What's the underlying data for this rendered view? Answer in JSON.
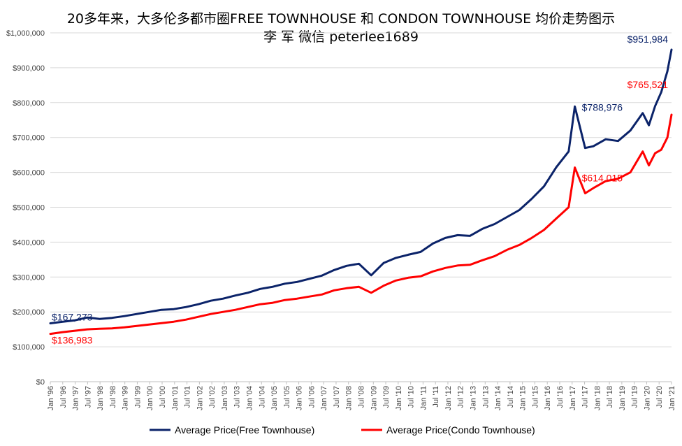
{
  "chart_data": {
    "type": "line",
    "title": "20多年来，大多伦多都市圈FREE TOWNHOUSE 和 CONDON TOWNHOUSE 均价走势图示",
    "subtitle": "李 军   微信 peterlee1689",
    "xlabel": "",
    "ylabel": "",
    "ylim": [
      0,
      1000000
    ],
    "y_ticks": [
      "$0",
      "$100,000",
      "$200,000",
      "$300,000",
      "$400,000",
      "$500,000",
      "$600,000",
      "$700,000",
      "$800,000",
      "$900,000",
      "$1,000,000"
    ],
    "x_ticks": [
      "Jan '96",
      "Jul '96",
      "Jan '97",
      "Jul '97",
      "Jan '98",
      "Jul '98",
      "Jan '99",
      "Jul '99",
      "Jan '00",
      "Jul '00",
      "Jan '01",
      "Jul '01",
      "Jan '02",
      "Jul '02",
      "Jan '03",
      "Jul '03",
      "Jan '04",
      "Jul '04",
      "Jan '05",
      "Jul '05",
      "Jan '06",
      "Jul '06",
      "Jan '07",
      "Jul '07",
      "Jan '08",
      "Jul '08",
      "Jan '09",
      "Jul '09",
      "Jan '10",
      "Jul '10",
      "Jan '11",
      "Jul '11",
      "Jan '12",
      "Jul '12",
      "Jan '13",
      "Jul '13",
      "Jan '14",
      "Jul '14",
      "Jan '15",
      "Jul '15",
      "Jan '16",
      "Jul '16",
      "Jan '17",
      "Jul '17",
      "Jan '18",
      "Jul '18",
      "Jan '19",
      "Jul '19",
      "Jan '20",
      "Jul '20",
      "Jan '21"
    ],
    "x_start": "1996-01",
    "x_end": "2021-03",
    "grid": true,
    "legend_position": "bottom",
    "series": [
      {
        "name": "Average Price(Free Townhouse)",
        "color": "#0b2369",
        "points": [
          [
            "1996-01",
            167273
          ],
          [
            "1996-07",
            172000
          ],
          [
            "1997-01",
            176000
          ],
          [
            "1997-07",
            184000
          ],
          [
            "1998-01",
            180000
          ],
          [
            "1998-07",
            183000
          ],
          [
            "1999-01",
            188000
          ],
          [
            "1999-07",
            194000
          ],
          [
            "2000-01",
            200000
          ],
          [
            "2000-07",
            206000
          ],
          [
            "2001-01",
            208000
          ],
          [
            "2001-07",
            214000
          ],
          [
            "2002-01",
            222000
          ],
          [
            "2002-07",
            232000
          ],
          [
            "2003-01",
            238000
          ],
          [
            "2003-07",
            247000
          ],
          [
            "2004-01",
            255000
          ],
          [
            "2004-07",
            266000
          ],
          [
            "2005-01",
            272000
          ],
          [
            "2005-07",
            281000
          ],
          [
            "2006-01",
            286000
          ],
          [
            "2006-07",
            295000
          ],
          [
            "2007-01",
            304000
          ],
          [
            "2007-07",
            320000
          ],
          [
            "2008-01",
            332000
          ],
          [
            "2008-07",
            338000
          ],
          [
            "2009-01",
            305000
          ],
          [
            "2009-07",
            340000
          ],
          [
            "2010-01",
            355000
          ],
          [
            "2010-07",
            364000
          ],
          [
            "2011-01",
            372000
          ],
          [
            "2011-07",
            396000
          ],
          [
            "2012-01",
            412000
          ],
          [
            "2012-07",
            420000
          ],
          [
            "2013-01",
            418000
          ],
          [
            "2013-07",
            438000
          ],
          [
            "2014-01",
            452000
          ],
          [
            "2014-07",
            472000
          ],
          [
            "2015-01",
            492000
          ],
          [
            "2015-07",
            524000
          ],
          [
            "2016-01",
            560000
          ],
          [
            "2016-07",
            615000
          ],
          [
            "2017-01",
            660000
          ],
          [
            "2017-04",
            788976
          ],
          [
            "2017-09",
            670000
          ],
          [
            "2018-01",
            675000
          ],
          [
            "2018-07",
            695000
          ],
          [
            "2019-01",
            690000
          ],
          [
            "2019-07",
            720000
          ],
          [
            "2020-01",
            770000
          ],
          [
            "2020-04",
            735000
          ],
          [
            "2020-07",
            790000
          ],
          [
            "2020-10",
            830000
          ],
          [
            "2021-01",
            890000
          ],
          [
            "2021-03",
            951984
          ]
        ]
      },
      {
        "name": "Average Price(Condo Townhouse)",
        "color": "#ff0000",
        "points": [
          [
            "1996-01",
            136983
          ],
          [
            "1996-07",
            142000
          ],
          [
            "1997-01",
            146000
          ],
          [
            "1997-07",
            150000
          ],
          [
            "1998-01",
            152000
          ],
          [
            "1998-07",
            153000
          ],
          [
            "1999-01",
            156000
          ],
          [
            "1999-07",
            160000
          ],
          [
            "2000-01",
            164000
          ],
          [
            "2000-07",
            168000
          ],
          [
            "2001-01",
            172000
          ],
          [
            "2001-07",
            178000
          ],
          [
            "2002-01",
            186000
          ],
          [
            "2002-07",
            194000
          ],
          [
            "2003-01",
            200000
          ],
          [
            "2003-07",
            206000
          ],
          [
            "2004-01",
            214000
          ],
          [
            "2004-07",
            222000
          ],
          [
            "2005-01",
            226000
          ],
          [
            "2005-07",
            234000
          ],
          [
            "2006-01",
            238000
          ],
          [
            "2006-07",
            244000
          ],
          [
            "2007-01",
            250000
          ],
          [
            "2007-07",
            262000
          ],
          [
            "2008-01",
            268000
          ],
          [
            "2008-07",
            272000
          ],
          [
            "2009-01",
            255000
          ],
          [
            "2009-07",
            275000
          ],
          [
            "2010-01",
            290000
          ],
          [
            "2010-07",
            298000
          ],
          [
            "2011-01",
            302000
          ],
          [
            "2011-07",
            316000
          ],
          [
            "2012-01",
            326000
          ],
          [
            "2012-07",
            333000
          ],
          [
            "2013-01",
            335000
          ],
          [
            "2013-07",
            348000
          ],
          [
            "2014-01",
            360000
          ],
          [
            "2014-07",
            378000
          ],
          [
            "2015-01",
            392000
          ],
          [
            "2015-07",
            412000
          ],
          [
            "2016-01",
            435000
          ],
          [
            "2016-07",
            468000
          ],
          [
            "2017-01",
            500000
          ],
          [
            "2017-04",
            614015
          ],
          [
            "2017-09",
            540000
          ],
          [
            "2018-01",
            555000
          ],
          [
            "2018-07",
            575000
          ],
          [
            "2019-01",
            582000
          ],
          [
            "2019-07",
            600000
          ],
          [
            "2020-01",
            660000
          ],
          [
            "2020-04",
            620000
          ],
          [
            "2020-07",
            655000
          ],
          [
            "2020-10",
            665000
          ],
          [
            "2021-01",
            700000
          ],
          [
            "2021-03",
            765521
          ]
        ]
      }
    ],
    "annotations": [
      {
        "text": "$167,273",
        "series": 0,
        "at": "1996-01",
        "color": "#0b2369"
      },
      {
        "text": "$788,976",
        "series": 0,
        "at": "2017-04",
        "color": "#0b2369"
      },
      {
        "text": "$951,984",
        "series": 0,
        "at": "2021-03",
        "color": "#0b2369"
      },
      {
        "text": "$136,983",
        "series": 1,
        "at": "1996-01",
        "color": "#ff0000"
      },
      {
        "text": "$614,015",
        "series": 1,
        "at": "2017-04",
        "color": "#ff0000"
      },
      {
        "text": "$765,521",
        "series": 1,
        "at": "2021-03",
        "color": "#ff0000"
      }
    ]
  }
}
